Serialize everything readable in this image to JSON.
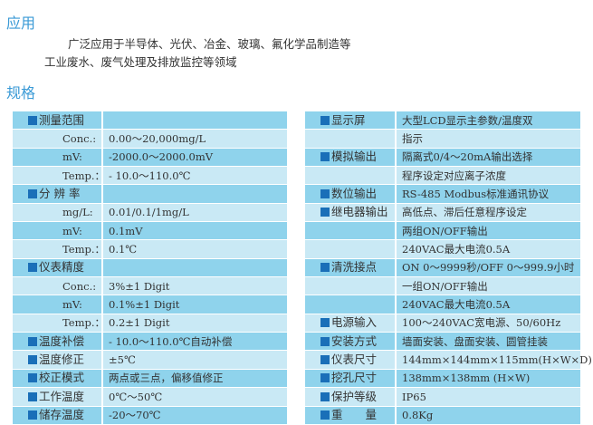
{
  "application": {
    "heading": "应用",
    "line1": "广泛应用于半导体、光伏、冶金、玻璃、氟化学品制造等",
    "line2": "工业废水、废气处理及排放监控等领域"
  },
  "specs": {
    "heading": "规格",
    "left": [
      {
        "label": "测量范围",
        "value": "",
        "main": true
      },
      {
        "label": "Conc.:",
        "value": "0.00～20,000mg/L"
      },
      {
        "label": "mV:",
        "value": "-2000.0～2000.0mV"
      },
      {
        "label": "Temp.：",
        "value": "- 10.0～110.0℃"
      },
      {
        "label": "分 辨 率",
        "value": "",
        "main": true
      },
      {
        "label": "mg/L:",
        "value": "0.01/0.1/1mg/L"
      },
      {
        "label": "mV:",
        "value": "0.1mV"
      },
      {
        "label": "Temp.：",
        "value": "0.1℃"
      },
      {
        "label": "仪表精度",
        "value": "",
        "main": true
      },
      {
        "label": "Conc.:",
        "value": "3%±1 Digit"
      },
      {
        "label": "mV:",
        "value": "0.1%±1 Digit"
      },
      {
        "label": "Temp.：",
        "value": "0.2±1 Digit"
      },
      {
        "label": "温度补偿",
        "value": "- 10.0～110.0℃自动补偿",
        "main": true
      },
      {
        "label": "温度修正",
        "value": "±5℃",
        "main": true
      },
      {
        "label": "校正模式",
        "value": "两点或三点，偏移值修正",
        "main": true
      },
      {
        "label": "工作温度",
        "value": "0℃～50℃",
        "main": true
      },
      {
        "label": "储存温度",
        "value": "-20～70℃",
        "main": true
      }
    ],
    "right": [
      {
        "label": "显示屏",
        "value": "大型LCD显示主参数/温度双",
        "main": true
      },
      {
        "label": "",
        "value": "指示"
      },
      {
        "label": "模拟输出",
        "value": "隔离式0/4～20mA输出选择",
        "main": true
      },
      {
        "label": "",
        "value": "程序设定对应离子浓度"
      },
      {
        "label": "数位输出",
        "value": "RS-485  Modbus标准通讯协议",
        "main": true
      },
      {
        "label": "继电器输出",
        "value": "高低点、滞后任意程序设定",
        "main": true
      },
      {
        "label": "",
        "value": "两组ON/OFF输出"
      },
      {
        "label": "",
        "value": "240VAC最大电流0.5A"
      },
      {
        "label": "清洗接点",
        "value": "ON 0～9999秒/OFF 0～999.9小时",
        "main": true
      },
      {
        "label": "",
        "value": "一组ON/OFF输出"
      },
      {
        "label": "",
        "value": "240VAC最大电流0.5A"
      },
      {
        "label": "电源输入",
        "value": "100～240VAC宽电源、50/60Hz",
        "main": true
      },
      {
        "label": "安装方式",
        "value": "墙面安装、盘面安装、圆管挂装",
        "main": true
      },
      {
        "label": "仪表尺寸",
        "value": "144mm×144mm×115mm(H×W×D)",
        "main": true
      },
      {
        "label": "挖孔尺寸",
        "value": "138mm×138mm (H×W)",
        "main": true
      },
      {
        "label": "保护等级",
        "value": "IP65",
        "main": true
      },
      {
        "label": "重　　量",
        "value": "0.8Kg",
        "main": true
      }
    ]
  },
  "colors": {
    "heading": "#3a9ad6",
    "row_dark": "#8fd3ec",
    "row_light": "#c9e9f5",
    "bullet": "#1a6fb8"
  }
}
